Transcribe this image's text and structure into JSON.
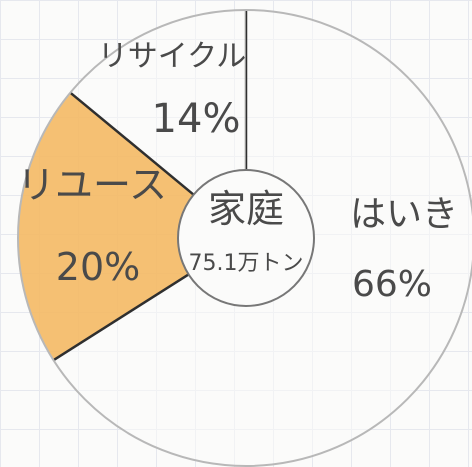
{
  "chart_data": {
    "type": "pie",
    "center_label": {
      "line1": "家庭",
      "line2": "75.1万トン"
    },
    "slices": [
      {
        "label": "はいき",
        "percent_text": "66%",
        "value": 66,
        "color": "#fbfbfa"
      },
      {
        "label": "リユース",
        "percent_text": "20%",
        "value": 20,
        "color": "#f4b964"
      },
      {
        "label": "リサイクル",
        "percent_text": "14%",
        "value": 14,
        "color": "#fbfbfa"
      }
    ]
  }
}
